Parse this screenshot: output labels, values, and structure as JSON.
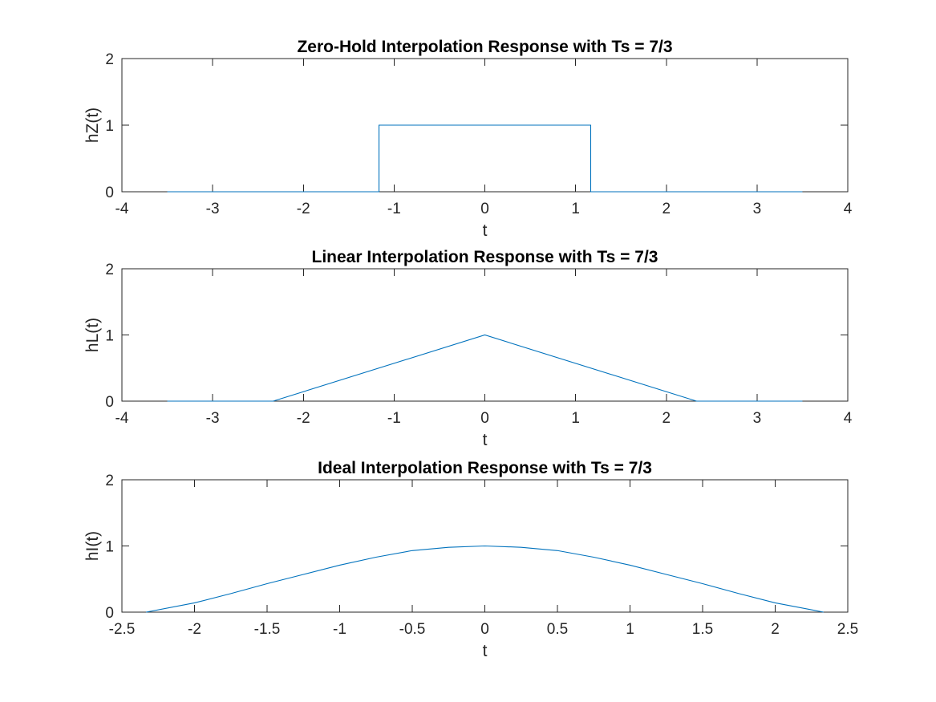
{
  "figure": {
    "background": "#ffffff"
  },
  "chart_data": [
    {
      "type": "line",
      "title": "Zero-Hold Interpolation Response with Ts = 7/3",
      "xlabel": "t",
      "ylabel": "hZ(t)",
      "xlim": [
        -4,
        4
      ],
      "ylim": [
        0,
        2
      ],
      "xticks": [
        -4,
        -3,
        -2,
        -1,
        0,
        1,
        2,
        3,
        4
      ],
      "xtick_labels": [
        "-4",
        "-3",
        "-2",
        "-1",
        "0",
        "1",
        "2",
        "3",
        "4"
      ],
      "yticks": [
        0,
        1,
        2
      ],
      "ytick_labels": [
        "0",
        "1",
        "2"
      ],
      "grid": false,
      "series": [
        {
          "color": "#0072BD",
          "x": [
            -3.5,
            -1.1667,
            -1.1667,
            1.1667,
            1.1667,
            3.5
          ],
          "y": [
            0,
            0,
            1,
            1,
            0,
            0
          ]
        }
      ]
    },
    {
      "type": "line",
      "title": "Linear Interpolation Response with Ts = 7/3",
      "xlabel": "t",
      "ylabel": "hL(t)",
      "xlim": [
        -4,
        4
      ],
      "ylim": [
        0,
        2
      ],
      "xticks": [
        -4,
        -3,
        -2,
        -1,
        0,
        1,
        2,
        3,
        4
      ],
      "xtick_labels": [
        "-4",
        "-3",
        "-2",
        "-1",
        "0",
        "1",
        "2",
        "3",
        "4"
      ],
      "yticks": [
        0,
        1,
        2
      ],
      "ytick_labels": [
        "0",
        "1",
        "2"
      ],
      "grid": false,
      "series": [
        {
          "color": "#0072BD",
          "x": [
            -3.5,
            -2.3333,
            0,
            2.3333,
            3.5
          ],
          "y": [
            0,
            0,
            1,
            0,
            0
          ]
        }
      ]
    },
    {
      "type": "line",
      "title": "Ideal Interpolation Response with Ts = 7/3",
      "xlabel": "t",
      "ylabel": "hI(t)",
      "xlim": [
        -2.5,
        2.5
      ],
      "ylim": [
        0,
        2
      ],
      "xticks": [
        -2.5,
        -2,
        -1.5,
        -1,
        -0.5,
        0,
        0.5,
        1,
        1.5,
        2,
        2.5
      ],
      "xtick_labels": [
        "-2.5",
        "-2",
        "-1.5",
        "-1",
        "-0.5",
        "0",
        "0.5",
        "1",
        "1.5",
        "2",
        "2.5"
      ],
      "yticks": [
        0,
        1,
        2
      ],
      "ytick_labels": [
        "0",
        "1",
        "2"
      ],
      "grid": false,
      "series": [
        {
          "color": "#0072BD",
          "x": [
            -2.3333,
            -2,
            -1.75,
            -1.5,
            -1.25,
            -1,
            -0.75,
            -0.5,
            -0.25,
            0,
            0.25,
            0.5,
            0.75,
            1,
            1.25,
            1.5,
            1.75,
            2,
            2.3333
          ],
          "y": [
            0,
            0.14,
            0.28,
            0.43,
            0.57,
            0.71,
            0.83,
            0.93,
            0.98,
            1,
            0.98,
            0.93,
            0.83,
            0.71,
            0.57,
            0.43,
            0.28,
            0.14,
            0
          ]
        }
      ]
    }
  ]
}
